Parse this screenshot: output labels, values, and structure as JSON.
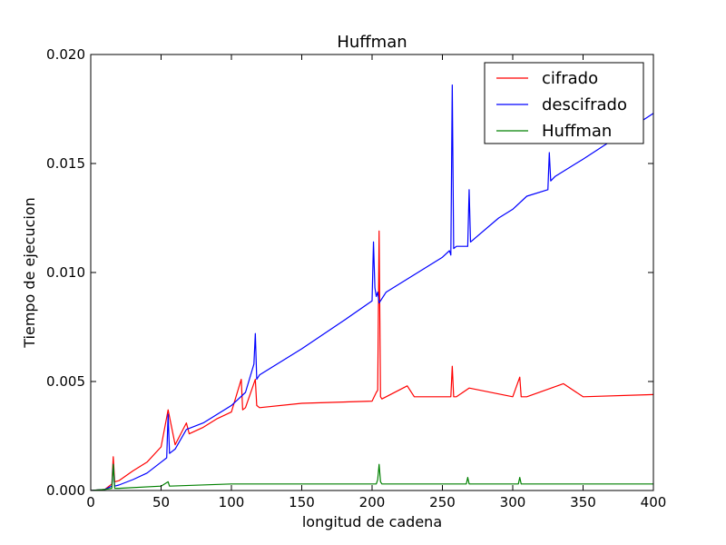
{
  "chart_data": {
    "type": "line",
    "title": "Huffman",
    "xlabel": "longitud de cadena",
    "ylabel": "Tiempo de ejecucion",
    "xlim": [
      0,
      400
    ],
    "ylim": [
      0,
      0.02
    ],
    "x_ticks": [
      0,
      50,
      100,
      150,
      200,
      250,
      300,
      350,
      400
    ],
    "x_tick_labels": [
      "0",
      "50",
      "100",
      "150",
      "200",
      "250",
      "300",
      "350",
      "400"
    ],
    "y_ticks": [
      0,
      0.005,
      0.01,
      0.015,
      0.02
    ],
    "y_tick_labels": [
      "0.000",
      "0.005",
      "0.010",
      "0.015",
      "0.020"
    ],
    "grid": false,
    "legend_position": "top-right",
    "series": [
      {
        "name": "cifrado",
        "color": "#ff0000",
        "x": [
          0,
          10,
          15,
          16,
          17,
          20,
          30,
          40,
          50,
          55,
          60,
          68,
          70,
          80,
          90,
          100,
          107,
          108,
          110,
          117,
          118,
          120,
          150,
          200,
          203,
          204,
          205,
          206,
          207,
          210,
          225,
          230,
          256,
          257,
          258,
          260,
          269,
          300,
          305,
          306,
          310,
          336,
          350,
          400
        ],
        "y": [
          0,
          5e-05,
          0.0003,
          0.00155,
          0.0004,
          0.00045,
          0.0009,
          0.0013,
          0.002,
          0.0037,
          0.0021,
          0.0031,
          0.0026,
          0.0029,
          0.0033,
          0.0036,
          0.0051,
          0.0037,
          0.0038,
          0.0051,
          0.0039,
          0.0038,
          0.004,
          0.0041,
          0.0045,
          0.0046,
          0.0119,
          0.0043,
          0.0042,
          0.0043,
          0.0048,
          0.0043,
          0.0043,
          0.0057,
          0.0043,
          0.0043,
          0.0047,
          0.0043,
          0.0052,
          0.0043,
          0.0043,
          0.0049,
          0.0043,
          0.0044
        ]
      },
      {
        "name": "descifrado",
        "color": "#0000ff",
        "x": [
          0,
          10,
          15,
          16,
          17,
          20,
          30,
          40,
          50,
          54,
          55,
          56,
          60,
          68,
          80,
          100,
          110,
          116,
          117,
          118,
          120,
          150,
          180,
          200,
          201,
          202,
          203,
          204,
          205,
          210,
          250,
          255,
          256,
          257,
          258,
          260,
          268,
          269,
          270,
          290,
          300,
          310,
          325,
          326,
          327,
          330,
          350,
          400
        ],
        "y": [
          0,
          5e-05,
          0.0002,
          0.0012,
          0.0002,
          0.00025,
          0.0005,
          0.0008,
          0.0013,
          0.0015,
          0.0035,
          0.0017,
          0.0019,
          0.0028,
          0.0031,
          0.0039,
          0.0045,
          0.0058,
          0.0072,
          0.0051,
          0.0053,
          0.0065,
          0.0078,
          0.0087,
          0.0114,
          0.0093,
          0.0089,
          0.0091,
          0.0086,
          0.0091,
          0.0107,
          0.011,
          0.0108,
          0.0186,
          0.0111,
          0.0112,
          0.0112,
          0.0138,
          0.0114,
          0.0125,
          0.0129,
          0.0135,
          0.0138,
          0.0155,
          0.0142,
          0.0144,
          0.0152,
          0.0173
        ]
      },
      {
        "name": "Huffman",
        "color": "#008000",
        "x": [
          0,
          10,
          15,
          16,
          17,
          20,
          50,
          55,
          56,
          100,
          150,
          200,
          203,
          204,
          205,
          206,
          207,
          210,
          267,
          268,
          269,
          300,
          304,
          305,
          306,
          350,
          400
        ],
        "y": [
          0,
          5e-05,
          0.0001,
          0.0012,
          0.0001,
          0.0001,
          0.0002,
          0.0004,
          0.0002,
          0.0003,
          0.0003,
          0.0003,
          0.0003,
          0.0005,
          0.0012,
          0.0004,
          0.0003,
          0.0003,
          0.0003,
          0.0006,
          0.0003,
          0.0003,
          0.0003,
          0.0006,
          0.0003,
          0.0003,
          0.0003
        ]
      }
    ]
  }
}
